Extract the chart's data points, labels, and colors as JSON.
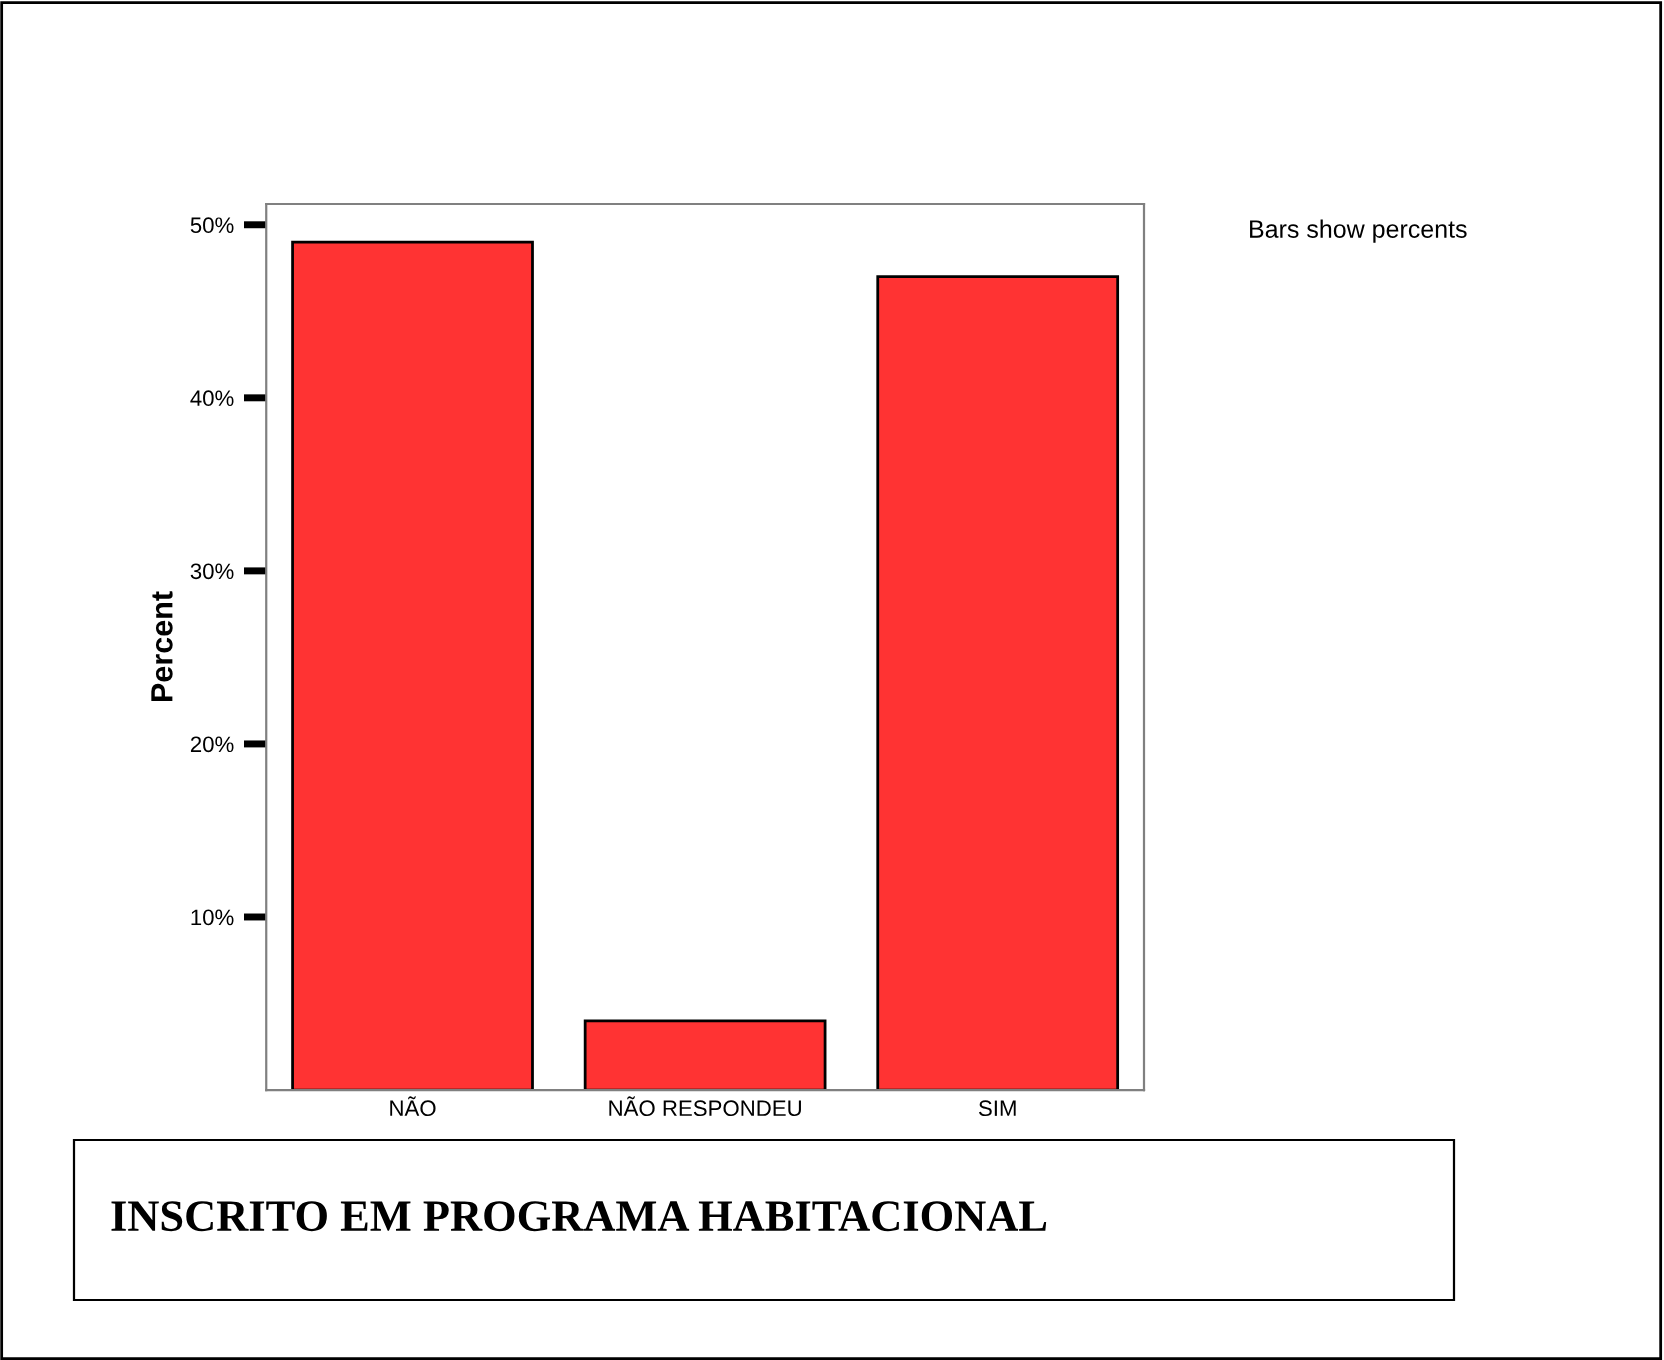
{
  "chart_data": {
    "type": "bar",
    "title": "INSCRITO EM PROGRAMA HABITACIONAL",
    "ylabel": "Percent",
    "categories": [
      "NÃO",
      "NÃO RESPONDEU",
      "SIM"
    ],
    "values": [
      49,
      4,
      47
    ],
    "color": "#ff3333",
    "ylim": [
      0,
      51.2
    ],
    "yticks": [
      {
        "value": 10,
        "label": "10%"
      },
      {
        "value": 20,
        "label": "20%"
      },
      {
        "value": 30,
        "label": "30%"
      },
      {
        "value": 40,
        "label": "40%"
      },
      {
        "value": 50,
        "label": "50%"
      }
    ],
    "annotations": [
      "Bars show percents"
    ],
    "grid": false,
    "legend": false
  }
}
